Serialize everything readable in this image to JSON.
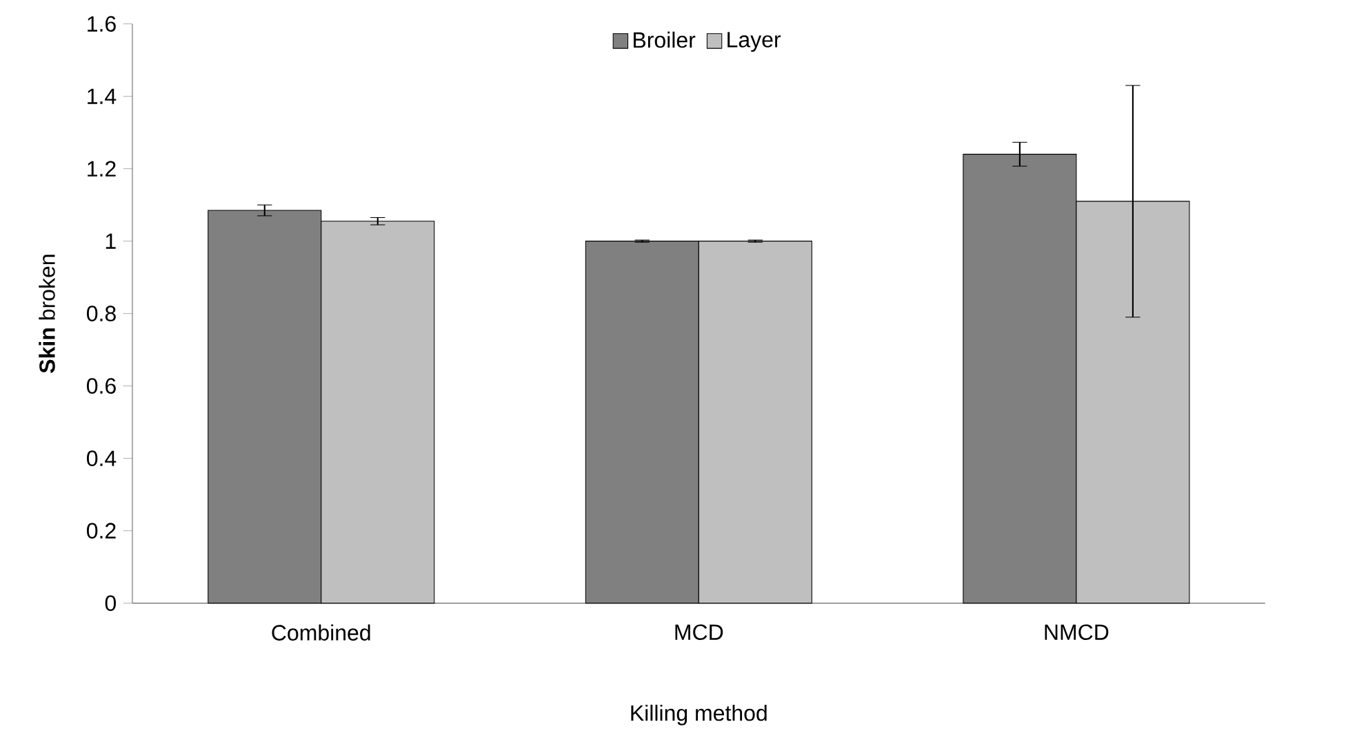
{
  "chart_data": {
    "type": "bar",
    "xlabel": "Killing method",
    "ylabel": "**Skin** broken",
    "categories": [
      "Combined",
      "MCD",
      "NMCD"
    ],
    "series": [
      {
        "name": "Broiler",
        "color": "#808080",
        "values": [
          1.085,
          1.0,
          1.24
        ],
        "errors": [
          0.015,
          0.003,
          0.033
        ]
      },
      {
        "name": "Layer",
        "color": "#bfbfbf",
        "values": [
          1.055,
          1.0,
          1.11
        ],
        "errors": [
          0.01,
          0.003,
          0.32
        ]
      }
    ],
    "ylim": [
      0,
      1.6
    ],
    "yticks": [
      0,
      0.2,
      0.4,
      0.6,
      0.8,
      1,
      1.2,
      1.4,
      1.6
    ],
    "grid": false,
    "legend": "top"
  }
}
